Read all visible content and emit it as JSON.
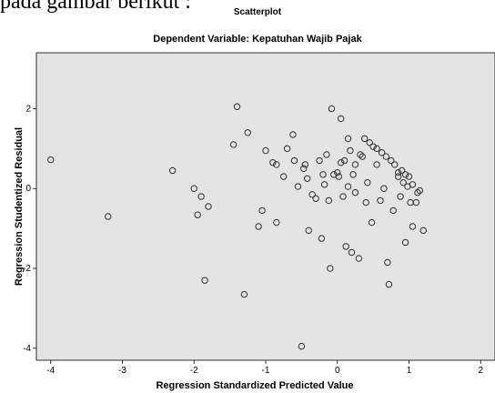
{
  "caption": "pada gambar berikut :",
  "chart_data": {
    "type": "scatter",
    "title": "Scatterplot",
    "subtitle": "Dependent Variable: Kepatuhan Wajib Pajak",
    "xlabel": "Regression Standardized Predicted Value",
    "ylabel": "Regression Studentized Residual",
    "xlim": [
      -4.2,
      2.2
    ],
    "ylim": [
      -4.3,
      3.4
    ],
    "xticks": [
      -4,
      -3,
      -2,
      -1,
      0,
      1,
      2
    ],
    "yticks": [
      -4,
      -2,
      0,
      2
    ],
    "background": "#e4e4e4",
    "marker_color": "#303030",
    "grid": false,
    "points": [
      [
        -4.0,
        0.72
      ],
      [
        -3.2,
        -0.7
      ],
      [
        -2.3,
        0.45
      ],
      [
        -2.0,
        0.0
      ],
      [
        -1.95,
        -0.66
      ],
      [
        -1.9,
        -0.2
      ],
      [
        -1.85,
        -2.3
      ],
      [
        -1.8,
        -0.45
      ],
      [
        -1.4,
        2.05
      ],
      [
        -1.45,
        1.1
      ],
      [
        -1.3,
        -2.65
      ],
      [
        -1.25,
        1.4
      ],
      [
        -1.1,
        -0.95
      ],
      [
        -1.05,
        -0.55
      ],
      [
        -1.0,
        0.95
      ],
      [
        -0.9,
        0.65
      ],
      [
        -0.85,
        0.6
      ],
      [
        -0.85,
        -0.85
      ],
      [
        -0.75,
        0.3
      ],
      [
        -0.7,
        1.0
      ],
      [
        -0.62,
        1.35
      ],
      [
        -0.6,
        0.7
      ],
      [
        -0.55,
        0.05
      ],
      [
        -0.5,
        -3.95
      ],
      [
        -0.47,
        0.5
      ],
      [
        -0.45,
        0.6
      ],
      [
        -0.42,
        0.25
      ],
      [
        -0.4,
        -1.05
      ],
      [
        -0.35,
        -0.15
      ],
      [
        -0.3,
        -0.25
      ],
      [
        -0.25,
        0.7
      ],
      [
        -0.22,
        -1.25
      ],
      [
        -0.2,
        0.35
      ],
      [
        -0.18,
        0.1
      ],
      [
        -0.15,
        0.85
      ],
      [
        -0.12,
        -0.3
      ],
      [
        -0.1,
        -2.0
      ],
      [
        -0.08,
        2.0
      ],
      [
        -0.05,
        0.35
      ],
      [
        0.0,
        0.4
      ],
      [
        0.02,
        0.3
      ],
      [
        0.05,
        1.75
      ],
      [
        0.05,
        0.65
      ],
      [
        0.08,
        -0.2
      ],
      [
        0.1,
        0.7
      ],
      [
        0.12,
        -1.45
      ],
      [
        0.15,
        1.25
      ],
      [
        0.15,
        0.05
      ],
      [
        0.18,
        0.95
      ],
      [
        0.2,
        -1.6
      ],
      [
        0.22,
        0.35
      ],
      [
        0.25,
        0.6
      ],
      [
        0.25,
        -0.1
      ],
      [
        0.3,
        -1.75
      ],
      [
        0.32,
        0.85
      ],
      [
        0.35,
        0.8
      ],
      [
        0.38,
        1.25
      ],
      [
        0.4,
        -0.35
      ],
      [
        0.42,
        0.15
      ],
      [
        0.45,
        1.15
      ],
      [
        0.48,
        -0.85
      ],
      [
        0.5,
        1.05
      ],
      [
        0.55,
        1.0
      ],
      [
        0.55,
        0.6
      ],
      [
        0.6,
        -0.3
      ],
      [
        0.62,
        0.9
      ],
      [
        0.65,
        0.0
      ],
      [
        0.68,
        0.8
      ],
      [
        0.7,
        -1.85
      ],
      [
        0.72,
        -2.4
      ],
      [
        0.75,
        0.7
      ],
      [
        0.78,
        -0.55
      ],
      [
        0.8,
        0.6
      ],
      [
        0.85,
        0.4
      ],
      [
        0.85,
        0.3
      ],
      [
        0.88,
        -0.2
      ],
      [
        0.9,
        0.45
      ],
      [
        0.92,
        0.15
      ],
      [
        0.95,
        -1.35
      ],
      [
        0.95,
        0.35
      ],
      [
        0.98,
        0.05
      ],
      [
        1.0,
        0.3
      ],
      [
        1.02,
        -0.35
      ],
      [
        1.05,
        -0.95
      ],
      [
        1.05,
        0.1
      ],
      [
        1.1,
        -0.35
      ],
      [
        1.12,
        -0.1
      ],
      [
        1.15,
        -0.05
      ],
      [
        1.2,
        -1.05
      ]
    ]
  }
}
